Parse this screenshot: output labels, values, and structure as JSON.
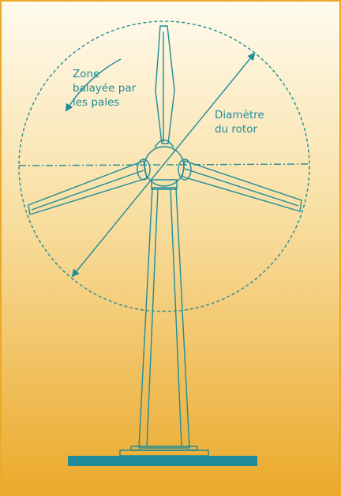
{
  "labels": {
    "swept_area": [
      "Zone",
      "balayée par",
      "les pales"
    ],
    "rotor_diameter": [
      "Diamètre",
      "du rotor"
    ]
  }
}
